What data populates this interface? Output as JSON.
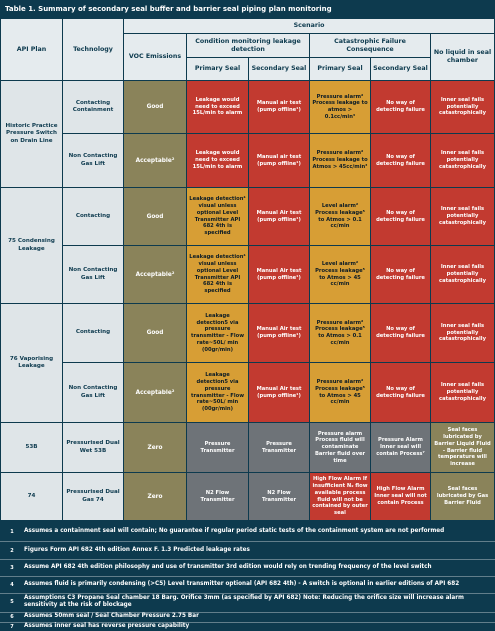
{
  "title": "Table 1. Summary of secondary seal buffer and barrier seal piping plan monitoring",
  "headers": {
    "api_plan": "API Plan",
    "technology": "Technology",
    "scenario": "Scenario",
    "voc": "VOC Emissions",
    "cond": "Condition monitoring leakage detection",
    "cat": "Catastrophic Failure Consequence",
    "noliquid": "No liquid in seal chamber",
    "primary1": "Primary Seal",
    "secondary1": "Secondary Seal",
    "primary2": "Primary Seal",
    "secondary2": "Secondary Seal"
  },
  "groups": [
    "Historic Practice Pressure Switch on Drain Line",
    "75 Condensing Leakage",
    "76 Vaporising Leakage",
    "53B",
    "74"
  ],
  "rows": [
    {
      "tech": "Contacting Containment",
      "voc": "Good",
      "p1": "Leakage would need to exceed 15L/min to alarm",
      "s1": "Manual air test (pump offline¹)",
      "p2": "Pressure alarm² Process leakage to atmos > 0.1cc/min³",
      "s2": "No way of detecting failure",
      "nl": "Inner seal fails potentially catastrophically"
    },
    {
      "tech": "Non Contacting Gas Lift",
      "voc": "Acceptable²",
      "p1": "Leakage would need to exceed 15L/min to alarm",
      "s1": "Manual air test (pump offline¹)",
      "p2": "Pressure alarm² Process leakage to Atmos > 45cc/min³",
      "s2": "No way of detecting failure",
      "nl": "Inner seal fails potentially catastrophically"
    },
    {
      "tech": "Contacting",
      "voc": "Good",
      "p1": "Leakage detection⁴ visual unless optional Level Transmitter API 682 4th is specified",
      "s1": "Manual Air test (pump offline¹)",
      "p2": "Level alarm² Process leakage⁵ to Atmos > 0.1 cc/min",
      "s2": "No way of detecting failure",
      "nl": "Inner seal fails potentially catastrophically"
    },
    {
      "tech": "Non Contacting Gas Lift",
      "voc": "Acceptable²",
      "p1": "Leakage detection⁴ visual unless optional Level Transmitter API 682 4th is specified",
      "s1": "Manual Air test (pump offline¹)",
      "p2": "Level alarm² Process leakage⁵ to Atmos > 45 cc/min",
      "s2": "No way of detecting failure",
      "nl": "Inner seal fails potentially catastrophically"
    },
    {
      "tech": "Contacting",
      "voc": "Good",
      "p1": "Leakage detection5 via pressure transmitter - Flow rate~50L/ min (00gr/min)",
      "s1": "Manual Air test (pump offline¹)",
      "p2": "Pressure alarm² Process leakage⁵ to Atmos > 0.1 cc/min",
      "s2": "No way of detecting failure",
      "nl": "Inner seal fails potentially catastrophically"
    },
    {
      "tech": "Non Contacting Gas Lift",
      "voc": "Acceptable²",
      "p1": "Leakage detection5 via pressure transmitter - Flow rate~50L/ min (00gr/min)",
      "s1": "Manual Air test (pump offline¹)",
      "p2": "Pressure alarm² Process leakage⁵ to Atmos > 45 cc/min",
      "s2": "No way of detecting failure",
      "nl": "Inner seal fails potentially catastrophically"
    },
    {
      "tech": "Pressurised Dual Wet 53B",
      "voc": "Zero",
      "p1": "Pressure Transmitter",
      "s1": "Pressure Transmitter",
      "p2": "Pressure alarm Process fluid will contaminate Barrier fluid over time",
      "s2": "Pressure Alarm Inner seal will contain Process⁷",
      "nl": "Seal faces lubricated by Barrier Liquid Fluid - Barrier fluid temperature will increase"
    },
    {
      "tech": "Pressurised Dual Gas 74",
      "voc": "Zero",
      "p1": "N2 Flow Transmitter",
      "s1": "N2 Flow Transmitter",
      "p2": "High Flow Alarm If insufficient N₂ flow available process fluid will not be contained by outer seal",
      "s2": "High Flow Alarm Inner seal will not contain Process",
      "nl": "Seal faces lubricated by Gas Barrier Fluid"
    }
  ],
  "footnotes": [
    {
      "n": "1",
      "t": "Assumes a containment seal will contain; No guarantee if regular period static tests of the containment system are not performed"
    },
    {
      "n": "2",
      "t": "Figures Form API 682 4th edition Annex F. 1.3 Predicted leakage rates"
    },
    {
      "n": "3",
      "t": "Assume API 682 4th edition philosophy and use of transmitter 3rd edition would rely on trending frequency of the level switch"
    },
    {
      "n": "4",
      "t": "Assumes fluid is primarily condensing (>C5) Level transmitter optional (API 682 4th) - A switch is optional in earlier editions of API 682"
    },
    {
      "n": "5",
      "t": "Assumptions C3 Propane Seal chamber 18 Barg. Orifice 3mm (as specified by API 682) Note: Reducing the orifice size will increase alarm sensitivity at the risk of blockage"
    },
    {
      "n": "6",
      "t": "Assumes 50mm seal / Seal Chamber Pressure 2.75 Bar"
    },
    {
      "n": "7",
      "t": "Assumes inner seal has reverse pressure capability"
    }
  ],
  "colors": {
    "navy": "#0d3a4e",
    "olive": "#8a835a",
    "red": "#c23a30",
    "amber": "#d79e35",
    "gray": "#6e7378",
    "header": "#e5ebee"
  }
}
